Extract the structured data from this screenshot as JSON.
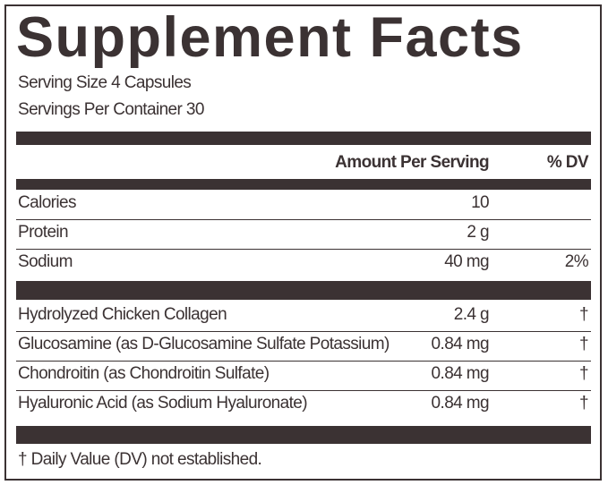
{
  "header": {
    "title": "Supplement Facts",
    "serving_size": "Serving Size 4 Capsules",
    "servings_per_container": "Servings Per Container 30"
  },
  "table": {
    "columns": [
      "Amount Per Serving",
      "% DV"
    ],
    "groups": [
      [
        {
          "name": "Calories",
          "amount": "10"
        },
        {
          "name": "Protein",
          "amount": "2 g"
        },
        {
          "name": "Sodium",
          "amount": "40 mg",
          "dv": "2%"
        }
      ],
      [
        {
          "name": "Hydrolyzed Chicken Collagen",
          "amount": "2.4 g",
          "dv": "†"
        },
        {
          "name": "Glucosamine (as D-Glucosamine Sulfate Potassium)",
          "amount": "0.84 mg",
          "dv": "†"
        },
        {
          "name": "Chondroitin (as Chondroitin Sulfate)",
          "amount": "0.84 mg",
          "dv": "†"
        },
        {
          "name": "Hyaluronic Acid (as Sodium Hyaluronate)",
          "amount": "0.84 mg",
          "dv": "†"
        }
      ]
    ]
  },
  "footnote": "† Daily Value (DV) not established."
}
